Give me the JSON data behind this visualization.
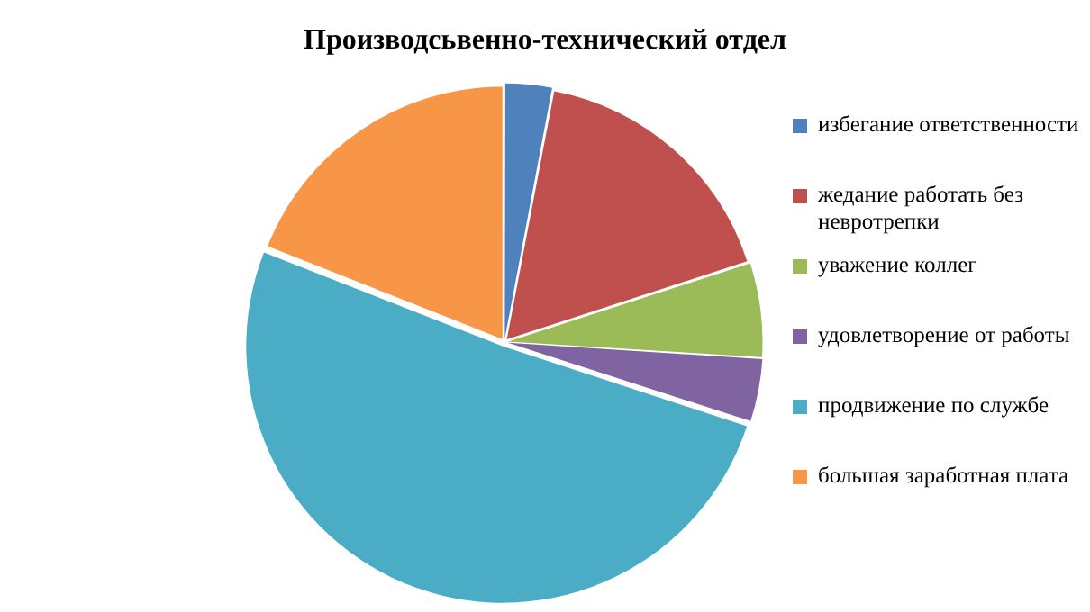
{
  "chart_data": {
    "type": "pie",
    "title": "Производсьвенно-технический отдел",
    "legend": "right",
    "categories": [
      "избегание ответственности",
      "жедание работать без невротрепки",
      "уважение коллег",
      "удовлетворение от работы",
      "продвижение по службе",
      "большая заработная плата"
    ],
    "values": [
      3,
      17,
      6,
      4,
      51,
      19
    ],
    "colors": [
      "#4f81bd",
      "#c0504d",
      "#9bbb59",
      "#8064a2",
      "#4bacc6",
      "#f79646"
    ]
  }
}
